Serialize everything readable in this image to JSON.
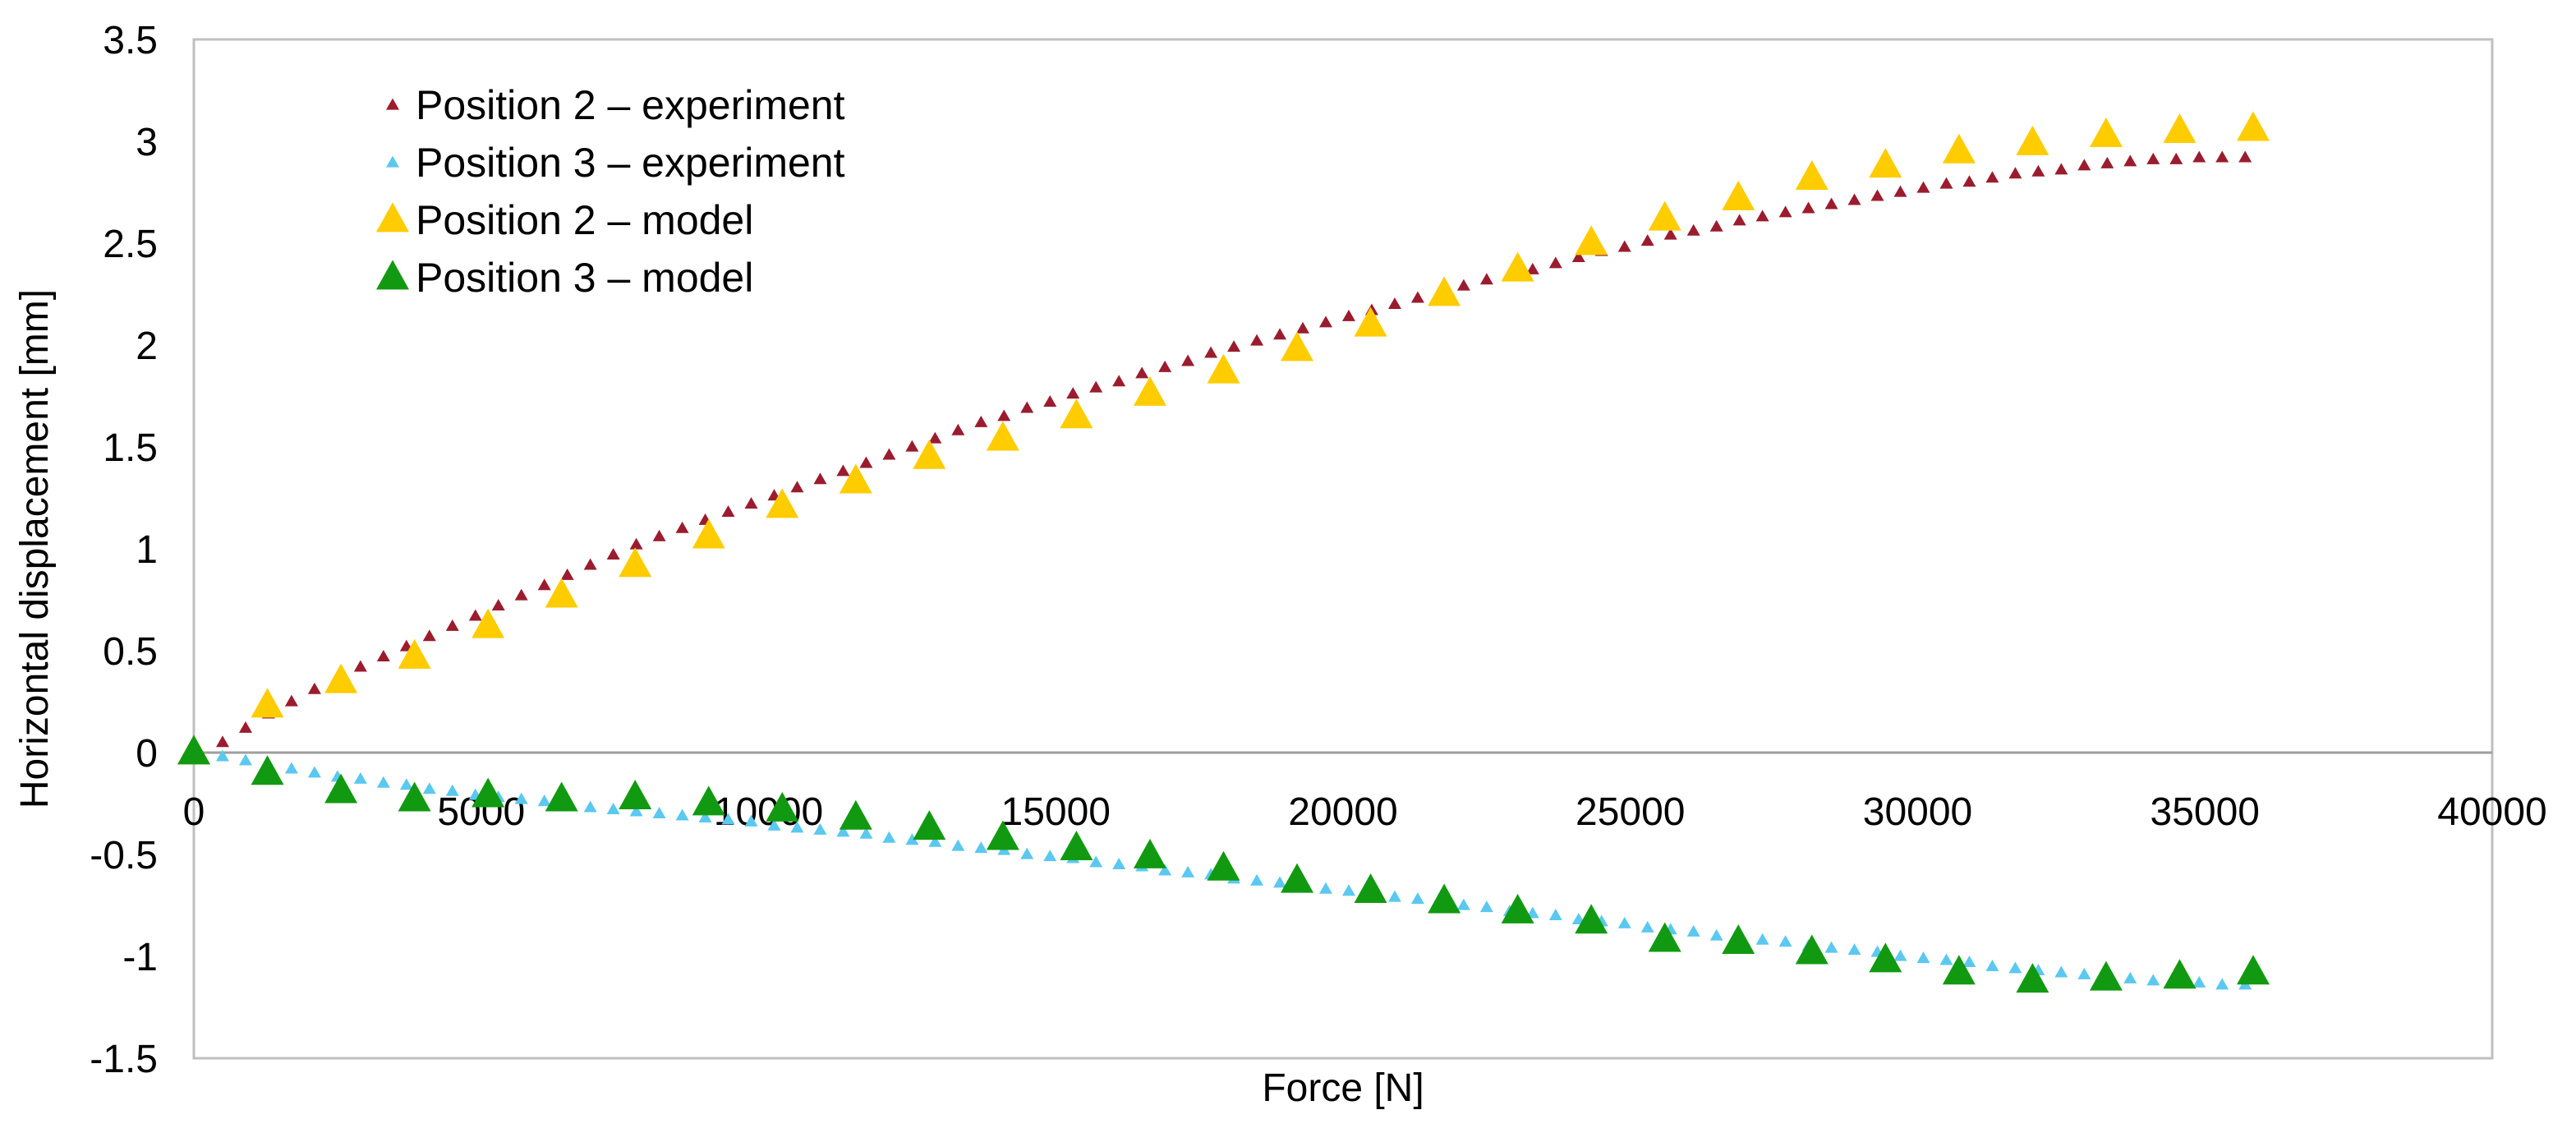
{
  "chart_data": {
    "type": "scatter",
    "title": "",
    "xlabel": "Force [N]",
    "ylabel": "Horizontal displacement [mm]",
    "xlim": [
      0,
      40000
    ],
    "ylim": [
      -1.5,
      3.5
    ],
    "xticks": [
      0,
      5000,
      10000,
      15000,
      20000,
      25000,
      30000,
      35000,
      40000
    ],
    "yticks": [
      -1.5,
      -1,
      -0.5,
      0,
      0.5,
      1,
      1.5,
      2,
      2.5,
      3,
      3.5
    ],
    "xtick_labels": [
      "0",
      "5000",
      "10000",
      "15000",
      "20000",
      "25000",
      "30000",
      "35000",
      "40000"
    ],
    "ytick_labels": [
      "-1.5",
      "-1",
      "-0.5",
      "0",
      "0.5",
      "1",
      "1.5",
      "2",
      "2.5",
      "3",
      "3.5"
    ],
    "grid": false,
    "legend_position": "top-left",
    "series": [
      {
        "name": "Position 2 – experiment",
        "marker": "small-triangle",
        "color": "#9B1C2E",
        "x": [
          0,
          500,
          900,
          1300,
          1700,
          2100,
          2500,
          2900,
          3300,
          3700,
          4100,
          4500,
          4900,
          5300,
          5700,
          6100,
          6500,
          6900,
          7300,
          7700,
          8100,
          8500,
          8900,
          9300,
          9700,
          10100,
          10500,
          10900,
          11300,
          11700,
          12100,
          12500,
          12900,
          13300,
          13700,
          14100,
          14500,
          14900,
          15300,
          15700,
          16100,
          16500,
          16900,
          17300,
          17700,
          18100,
          18500,
          18900,
          19300,
          19700,
          20100,
          20500,
          20900,
          21300,
          21700,
          22100,
          22500,
          22900,
          23300,
          23700,
          24100,
          24500,
          24900,
          25300,
          25700,
          26100,
          26500,
          26900,
          27300,
          27700,
          28100,
          28500,
          28900,
          29300,
          29700,
          30100,
          30500,
          30900,
          31300,
          31700,
          32100,
          32500,
          32900,
          33300,
          33700,
          34100,
          34500,
          34900,
          35300,
          35700
        ],
        "y": [
          0.0,
          0.05,
          0.12,
          0.19,
          0.25,
          0.31,
          0.37,
          0.42,
          0.47,
          0.52,
          0.57,
          0.62,
          0.67,
          0.72,
          0.77,
          0.82,
          0.87,
          0.92,
          0.97,
          1.02,
          1.06,
          1.1,
          1.14,
          1.18,
          1.22,
          1.26,
          1.3,
          1.34,
          1.38,
          1.42,
          1.46,
          1.5,
          1.54,
          1.58,
          1.62,
          1.65,
          1.69,
          1.72,
          1.76,
          1.79,
          1.82,
          1.86,
          1.89,
          1.92,
          1.96,
          1.99,
          2.02,
          2.05,
          2.08,
          2.11,
          2.14,
          2.17,
          2.2,
          2.23,
          2.26,
          2.29,
          2.32,
          2.35,
          2.37,
          2.4,
          2.43,
          2.46,
          2.48,
          2.51,
          2.54,
          2.56,
          2.58,
          2.61,
          2.63,
          2.65,
          2.67,
          2.69,
          2.71,
          2.73,
          2.75,
          2.77,
          2.79,
          2.8,
          2.82,
          2.84,
          2.85,
          2.86,
          2.88,
          2.89,
          2.9,
          2.91,
          2.91,
          2.92,
          2.92,
          2.92
        ]
      },
      {
        "name": "Position 3 – experiment",
        "marker": "small-triangle",
        "color": "#5BC8F0",
        "x": [
          0,
          500,
          900,
          1300,
          1700,
          2100,
          2500,
          2900,
          3300,
          3700,
          4100,
          4500,
          4900,
          5300,
          5700,
          6100,
          6500,
          6900,
          7300,
          7700,
          8100,
          8500,
          8900,
          9300,
          9700,
          10100,
          10500,
          10900,
          11300,
          11700,
          12100,
          12500,
          12900,
          13300,
          13700,
          14100,
          14500,
          14900,
          15300,
          15700,
          16100,
          16500,
          16900,
          17300,
          17700,
          18100,
          18500,
          18900,
          19300,
          19700,
          20100,
          20500,
          20900,
          21300,
          21700,
          22100,
          22500,
          22900,
          23300,
          23700,
          24100,
          24500,
          24900,
          25300,
          25700,
          26100,
          26500,
          26900,
          27300,
          27700,
          28100,
          28500,
          28900,
          29300,
          29700,
          30100,
          30500,
          30900,
          31300,
          31700,
          32100,
          32500,
          32900,
          33300,
          33700,
          34100,
          34500,
          34900,
          35300,
          35700
        ],
        "y": [
          0.0,
          -0.02,
          -0.04,
          -0.06,
          -0.08,
          -0.1,
          -0.12,
          -0.13,
          -0.15,
          -0.16,
          -0.18,
          -0.19,
          -0.21,
          -0.22,
          -0.23,
          -0.24,
          -0.25,
          -0.27,
          -0.28,
          -0.29,
          -0.3,
          -0.31,
          -0.32,
          -0.33,
          -0.34,
          -0.36,
          -0.37,
          -0.38,
          -0.39,
          -0.4,
          -0.42,
          -0.43,
          -0.44,
          -0.46,
          -0.47,
          -0.48,
          -0.5,
          -0.51,
          -0.52,
          -0.54,
          -0.55,
          -0.56,
          -0.58,
          -0.59,
          -0.6,
          -0.62,
          -0.63,
          -0.64,
          -0.66,
          -0.67,
          -0.68,
          -0.7,
          -0.71,
          -0.72,
          -0.74,
          -0.75,
          -0.76,
          -0.78,
          -0.79,
          -0.8,
          -0.82,
          -0.83,
          -0.84,
          -0.86,
          -0.87,
          -0.88,
          -0.9,
          -0.91,
          -0.92,
          -0.93,
          -0.95,
          -0.96,
          -0.97,
          -0.98,
          -1.0,
          -1.01,
          -1.02,
          -1.03,
          -1.05,
          -1.06,
          -1.07,
          -1.08,
          -1.09,
          -1.1,
          -1.11,
          -1.12,
          -1.12,
          -1.13,
          -1.14,
          -1.14
        ]
      },
      {
        "name": "Position 2 – model",
        "marker": "large-triangle",
        "color": "#FFCC00",
        "x": [
          0,
          1280,
          2560,
          3840,
          5120,
          6400,
          7680,
          8960,
          10240,
          11520,
          12800,
          14080,
          15360,
          16640,
          17920,
          19200,
          20480,
          21760,
          23040,
          24320,
          25600,
          26880,
          28160,
          29440,
          30720,
          32000,
          33280,
          34560,
          35840
        ],
        "y": [
          0.0,
          0.23,
          0.35,
          0.47,
          0.62,
          0.77,
          0.92,
          1.06,
          1.21,
          1.33,
          1.45,
          1.54,
          1.65,
          1.76,
          1.87,
          1.98,
          2.1,
          2.25,
          2.37,
          2.5,
          2.62,
          2.72,
          2.82,
          2.88,
          2.95,
          2.99,
          3.03,
          3.05,
          3.06
        ]
      },
      {
        "name": "Position 3 – model",
        "marker": "large-triangle",
        "color": "#119A11",
        "x": [
          0,
          1280,
          2560,
          3840,
          5120,
          6400,
          7680,
          8960,
          10240,
          11520,
          12800,
          14080,
          15360,
          16640,
          17920,
          19200,
          20480,
          21760,
          23040,
          24320,
          25600,
          26880,
          28160,
          29440,
          30720,
          32000,
          33280,
          34560,
          35840
        ],
        "y": [
          0.0,
          -0.1,
          -0.19,
          -0.23,
          -0.21,
          -0.23,
          -0.22,
          -0.25,
          -0.28,
          -0.32,
          -0.37,
          -0.42,
          -0.47,
          -0.51,
          -0.57,
          -0.63,
          -0.68,
          -0.73,
          -0.78,
          -0.83,
          -0.92,
          -0.93,
          -0.98,
          -1.02,
          -1.08,
          -1.12,
          -1.11,
          -1.1,
          -1.08
        ]
      }
    ]
  }
}
